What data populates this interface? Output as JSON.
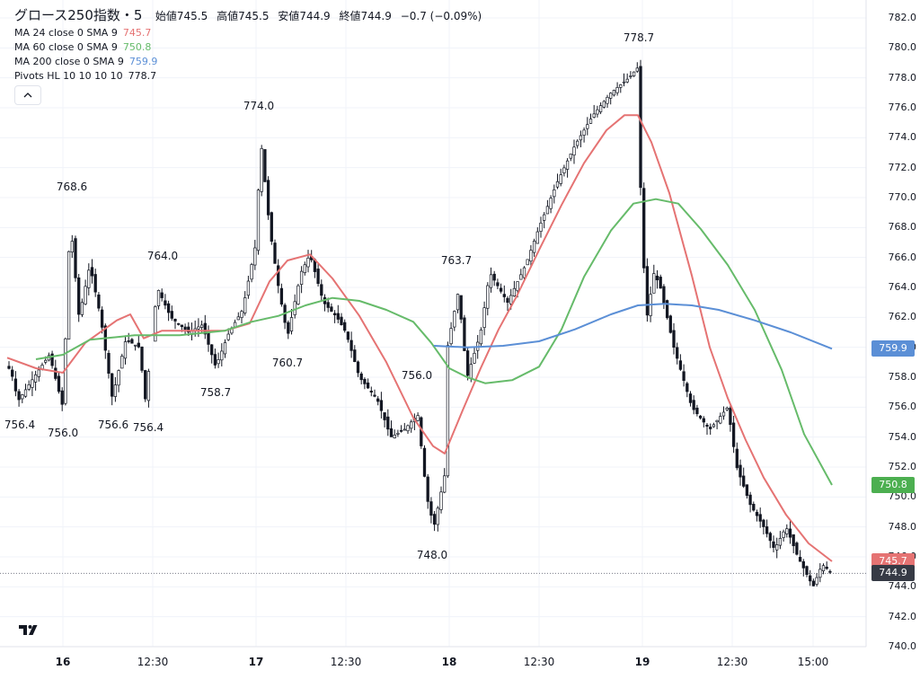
{
  "header": {
    "title": "グロース250指数・5",
    "ohlc": [
      {
        "label": "始値",
        "value": "745.5"
      },
      {
        "label": "高値",
        "value": "745.5"
      },
      {
        "label": "安値",
        "value": "744.9"
      },
      {
        "label": "終値",
        "value": "744.9"
      }
    ],
    "change": "−0.7 (−0.09%)"
  },
  "indicators": [
    {
      "label": "MA 24 close 0 SMA 9",
      "value": "745.7",
      "color": "#e57373"
    },
    {
      "label": "MA 60 close 0 SMA 9",
      "value": "750.8",
      "color": "#66bb6a"
    },
    {
      "label": "MA 200 close 0 SMA 9",
      "value": "759.9",
      "color": "#5b8fd6"
    },
    {
      "label": "Pivots HL 10 10 10 10",
      "value": "778.7",
      "color": "#131722"
    }
  ],
  "collapse_icon": "chevron-up-icon",
  "price_axis": [
    "782.0",
    "780.0",
    "778.0",
    "776.0",
    "774.0",
    "772.0",
    "770.0",
    "768.0",
    "766.0",
    "764.0",
    "762.0",
    "760.0",
    "758.0",
    "756.0",
    "754.0",
    "752.0",
    "750.0",
    "748.0",
    "746.0",
    "744.0",
    "742.0",
    "740.0"
  ],
  "time_axis": [
    {
      "label": "16",
      "bold": true
    },
    {
      "label": "12:30",
      "bold": false
    },
    {
      "label": "17",
      "bold": true
    },
    {
      "label": "12:30",
      "bold": false
    },
    {
      "label": "18",
      "bold": true
    },
    {
      "label": "12:30",
      "bold": false
    },
    {
      "label": "19",
      "bold": true
    },
    {
      "label": "12:30",
      "bold": false
    },
    {
      "label": "15:00",
      "bold": false
    }
  ],
  "price_tags": {
    "ma200": {
      "value": "759.9",
      "color": "#5b8fd6"
    },
    "ma60": {
      "value": "750.8",
      "color": "#4caf50"
    },
    "ma24": {
      "value": "745.7",
      "color": "#e57373"
    },
    "last": {
      "value": "744.9",
      "color": "#363a45"
    }
  },
  "pivots": [
    "756.4",
    "756.0",
    "768.6",
    "756.6",
    "756.4",
    "764.0",
    "758.7",
    "774.0",
    "760.7",
    "756.0",
    "748.0",
    "763.7",
    "778.7"
  ],
  "chart_data": {
    "type": "line",
    "title": "グロース250指数・5",
    "x_days": [
      "16",
      "17",
      "18",
      "19"
    ],
    "ylim": [
      740,
      782
    ],
    "price_path": [
      [
        0,
        759
      ],
      [
        12,
        758.5
      ],
      [
        20,
        756.4
      ],
      [
        40,
        758.2
      ],
      [
        55,
        759.5
      ],
      [
        70,
        756
      ],
      [
        78,
        768.6
      ],
      [
        88,
        762
      ],
      [
        100,
        765.5
      ],
      [
        112,
        762
      ],
      [
        125,
        756.6
      ],
      [
        140,
        760.5
      ],
      [
        155,
        760
      ],
      [
        162,
        756.4
      ],
      [
        175,
        764
      ],
      [
        190,
        762
      ],
      [
        210,
        761
      ],
      [
        225,
        761.5
      ],
      [
        240,
        758.7
      ],
      [
        255,
        761
      ],
      [
        270,
        762.5
      ],
      [
        285,
        767
      ],
      [
        290,
        774
      ],
      [
        300,
        768
      ],
      [
        310,
        764
      ],
      [
        320,
        760.7
      ],
      [
        335,
        765
      ],
      [
        345,
        766.2
      ],
      [
        360,
        763
      ],
      [
        375,
        762
      ],
      [
        385,
        761
      ],
      [
        400,
        758
      ],
      [
        420,
        756.5
      ],
      [
        435,
        754
      ],
      [
        450,
        754.5
      ],
      [
        465,
        755.5
      ],
      [
        475,
        750
      ],
      [
        483,
        748
      ],
      [
        495,
        751.5
      ],
      [
        498,
        760
      ],
      [
        510,
        763.7
      ],
      [
        520,
        758
      ],
      [
        535,
        761
      ],
      [
        545,
        765
      ],
      [
        565,
        763
      ],
      [
        585,
        765.5
      ],
      [
        600,
        768
      ],
      [
        620,
        771
      ],
      [
        640,
        773.5
      ],
      [
        660,
        775.5
      ],
      [
        680,
        777
      ],
      [
        700,
        778
      ],
      [
        710,
        778.7
      ],
      [
        714,
        768
      ],
      [
        720,
        762
      ],
      [
        728,
        765
      ],
      [
        735,
        764
      ],
      [
        750,
        760
      ],
      [
        770,
        756
      ],
      [
        790,
        754.5
      ],
      [
        810,
        756
      ],
      [
        820,
        752
      ],
      [
        835,
        749.5
      ],
      [
        850,
        748
      ],
      [
        862,
        746.5
      ],
      [
        875,
        748
      ],
      [
        888,
        746
      ],
      [
        905,
        744
      ],
      [
        915,
        745.5
      ],
      [
        926,
        744.9
      ]
    ],
    "series": [
      {
        "name": "MA 24 close 0 SMA 9",
        "last": 745.7,
        "color": "#e57373",
        "points": [
          [
            8,
            759.3
          ],
          [
            40,
            758.6
          ],
          [
            70,
            758.3
          ],
          [
            95,
            760.3
          ],
          [
            130,
            761.8
          ],
          [
            145,
            762.2
          ],
          [
            160,
            760.6
          ],
          [
            180,
            761.1
          ],
          [
            210,
            761.1
          ],
          [
            250,
            761.1
          ],
          [
            278,
            761.6
          ],
          [
            300,
            764.4
          ],
          [
            320,
            765.8
          ],
          [
            345,
            766.2
          ],
          [
            370,
            764.6
          ],
          [
            400,
            762.1
          ],
          [
            430,
            759
          ],
          [
            460,
            755.3
          ],
          [
            482,
            753.4
          ],
          [
            495,
            752.9
          ],
          [
            515,
            755.8
          ],
          [
            535,
            758.6
          ],
          [
            555,
            761.2
          ],
          [
            575,
            763.4
          ],
          [
            600,
            766.5
          ],
          [
            625,
            769.5
          ],
          [
            650,
            772.3
          ],
          [
            675,
            774.5
          ],
          [
            695,
            775.5
          ],
          [
            710,
            775.5
          ],
          [
            725,
            773.7
          ],
          [
            745,
            770.3
          ],
          [
            770,
            764.8
          ],
          [
            790,
            760
          ],
          [
            810,
            756.6
          ],
          [
            830,
            753.8
          ],
          [
            850,
            751.3
          ],
          [
            875,
            748.8
          ],
          [
            900,
            746.9
          ],
          [
            926,
            745.7
          ]
        ]
      },
      {
        "name": "MA 60 close 0 SMA 9",
        "last": 750.8,
        "color": "#66bb6a",
        "points": [
          [
            40,
            759.2
          ],
          [
            70,
            759.5
          ],
          [
            100,
            760.5
          ],
          [
            150,
            760.8
          ],
          [
            200,
            760.8
          ],
          [
            250,
            761.1
          ],
          [
            280,
            761.7
          ],
          [
            310,
            762.1
          ],
          [
            340,
            762.8
          ],
          [
            370,
            763.3
          ],
          [
            400,
            763.1
          ],
          [
            430,
            762.5
          ],
          [
            460,
            761.7
          ],
          [
            480,
            760.3
          ],
          [
            500,
            758.6
          ],
          [
            520,
            758
          ],
          [
            540,
            757.6
          ],
          [
            570,
            757.8
          ],
          [
            600,
            758.7
          ],
          [
            625,
            761.2
          ],
          [
            650,
            764.7
          ],
          [
            680,
            767.8
          ],
          [
            705,
            769.6
          ],
          [
            730,
            769.9
          ],
          [
            755,
            769.6
          ],
          [
            780,
            767.9
          ],
          [
            810,
            765.5
          ],
          [
            840,
            762.5
          ],
          [
            870,
            758.5
          ],
          [
            895,
            754.2
          ],
          [
            926,
            750.8
          ]
        ]
      },
      {
        "name": "MA 200 close 0 SMA 9",
        "last": 759.9,
        "color": "#5b8fd6",
        "points": [
          [
            483,
            760.1
          ],
          [
            520,
            760
          ],
          [
            560,
            760.1
          ],
          [
            600,
            760.4
          ],
          [
            640,
            761.2
          ],
          [
            680,
            762.2
          ],
          [
            710,
            762.8
          ],
          [
            740,
            762.9
          ],
          [
            770,
            762.8
          ],
          [
            800,
            762.5
          ],
          [
            840,
            761.8
          ],
          [
            880,
            761
          ],
          [
            926,
            759.9
          ]
        ]
      }
    ]
  }
}
